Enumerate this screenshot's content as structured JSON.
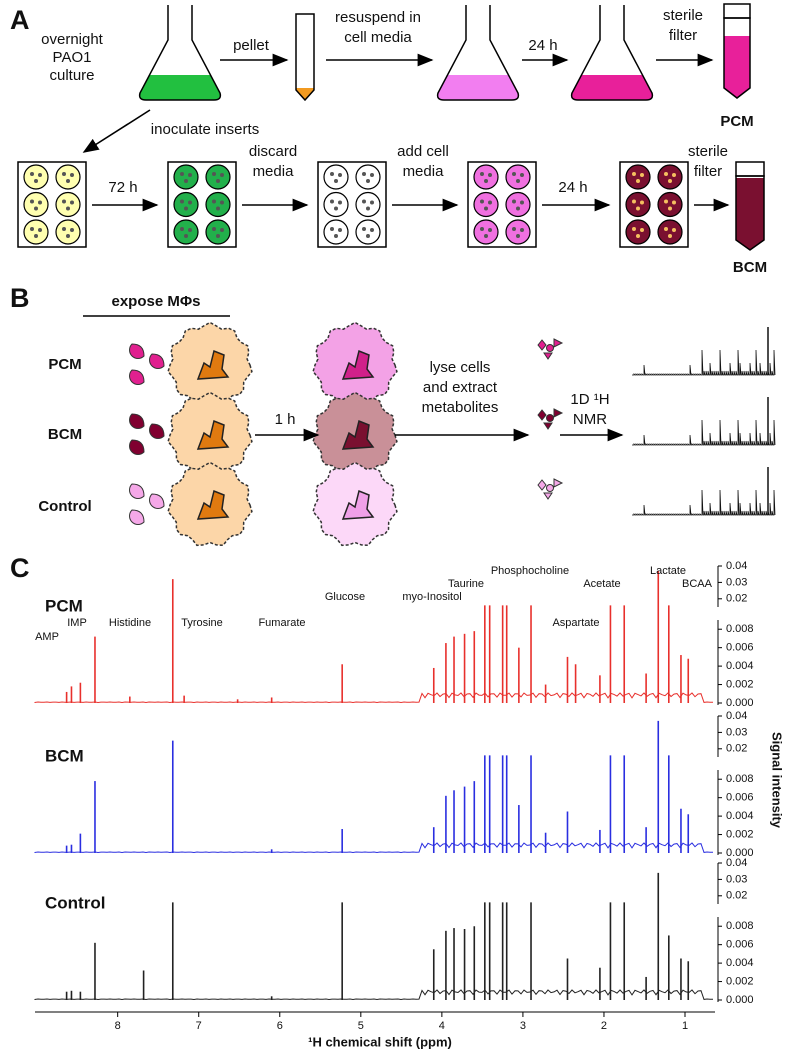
{
  "panel_a": {
    "label": "A",
    "culture": [
      "overnight",
      "PAO1",
      "culture"
    ],
    "pellet": "pellet",
    "resuspend": [
      "resuspend in",
      "cell media"
    ],
    "incubate_1": "24 h",
    "filter_1": [
      "sterile",
      "filter"
    ],
    "product_1": "PCM",
    "inoculate": "inoculate inserts",
    "incubate_2": "72 h",
    "discard": [
      "discard",
      "media"
    ],
    "add_media": [
      "add cell",
      "media"
    ],
    "incubate_3": "24 h",
    "filter_2": [
      "sterile",
      "filter"
    ],
    "product_2": "BCM"
  },
  "panel_b": {
    "label": "B",
    "expose": "expose MΦs",
    "rows": [
      "PCM",
      "BCM",
      "Control"
    ],
    "incubate": "1 h",
    "lyse": [
      "lyse cells",
      "and extract",
      "metabolites"
    ],
    "nmr": [
      "1D ¹H",
      "NMR"
    ]
  },
  "panel_c_label": "C",
  "chart_data": {
    "type": "spectrum",
    "xlabel": "¹H chemical shift (ppm)",
    "ylabel": "Signal intensity",
    "xlim": [
      9.02,
      0.63
    ],
    "xticks": [
      8,
      7,
      6,
      5,
      4,
      3,
      2,
      1
    ],
    "ylim": [
      0,
      0.04
    ],
    "y_break": [
      0.009,
      0.015
    ],
    "yticks": [
      {
        "value": 0,
        "label": "0.000"
      },
      0.002,
      0.004,
      0.006,
      0.008,
      0.02,
      0.03,
      0.04
    ],
    "annotations": [
      "AMP",
      "IMP",
      "Histidine",
      "Tyrosine",
      "Fumarate",
      "Glucose",
      "myo-Inositol",
      "Taurine",
      "Phosphocholine",
      "Aspartate",
      "Acetate",
      "Lactate",
      "BCAA"
    ],
    "series": [
      {
        "name": "PCM",
        "color": "#e8302c",
        "x": [
          8.63,
          8.57,
          8.46,
          8.28,
          7.85,
          7.32,
          7.18,
          6.52,
          6.1,
          5.23,
          4.1,
          3.95,
          3.85,
          3.72,
          3.6,
          3.47,
          3.41,
          3.25,
          3.2,
          3.05,
          2.9,
          2.72,
          2.45,
          2.35,
          2.05,
          1.92,
          1.75,
          1.48,
          1.33,
          1.2,
          1.05,
          0.96
        ],
        "values": [
          0.0012,
          0.0018,
          0.0022,
          0.0072,
          0.0007,
          0.032,
          0.0008,
          0.0004,
          0.0006,
          0.0042,
          0.0038,
          0.0065,
          0.0072,
          0.0075,
          0.0078,
          0.016,
          0.016,
          0.016,
          0.016,
          0.006,
          0.016,
          0.002,
          0.005,
          0.0042,
          0.003,
          0.016,
          0.016,
          0.0032,
          0.037,
          0.016,
          0.0052,
          0.0048
        ]
      },
      {
        "name": "BCM",
        "color": "#2a2ee0",
        "x": [
          8.63,
          8.57,
          8.46,
          8.28,
          7.32,
          6.1,
          5.23,
          4.1,
          3.95,
          3.85,
          3.72,
          3.6,
          3.47,
          3.41,
          3.25,
          3.2,
          3.05,
          2.9,
          2.72,
          2.45,
          2.05,
          1.92,
          1.75,
          1.48,
          1.33,
          1.2,
          1.05,
          0.96
        ],
        "values": [
          0.0008,
          0.0009,
          0.0021,
          0.0078,
          0.025,
          0.0004,
          0.0026,
          0.0028,
          0.0062,
          0.0068,
          0.0072,
          0.0078,
          0.016,
          0.016,
          0.016,
          0.016,
          0.0052,
          0.016,
          0.0022,
          0.0045,
          0.0025,
          0.016,
          0.016,
          0.0028,
          0.037,
          0.016,
          0.0048,
          0.0042
        ]
      },
      {
        "name": "Control",
        "color": "#222222",
        "x": [
          8.63,
          8.57,
          8.46,
          8.28,
          7.68,
          7.32,
          6.1,
          5.23,
          4.1,
          3.95,
          3.85,
          3.72,
          3.6,
          3.47,
          3.41,
          3.25,
          3.2,
          2.9,
          2.45,
          2.05,
          1.92,
          1.75,
          1.48,
          1.33,
          1.2,
          1.05,
          0.96
        ],
        "values": [
          0.0009,
          0.001,
          0.0009,
          0.0062,
          0.0032,
          0.016,
          0.0004,
          0.016,
          0.0055,
          0.0075,
          0.0078,
          0.0077,
          0.008,
          0.016,
          0.016,
          0.016,
          0.016,
          0.016,
          0.0045,
          0.0035,
          0.016,
          0.016,
          0.0025,
          0.034,
          0.007,
          0.0045,
          0.0042
        ]
      }
    ]
  }
}
